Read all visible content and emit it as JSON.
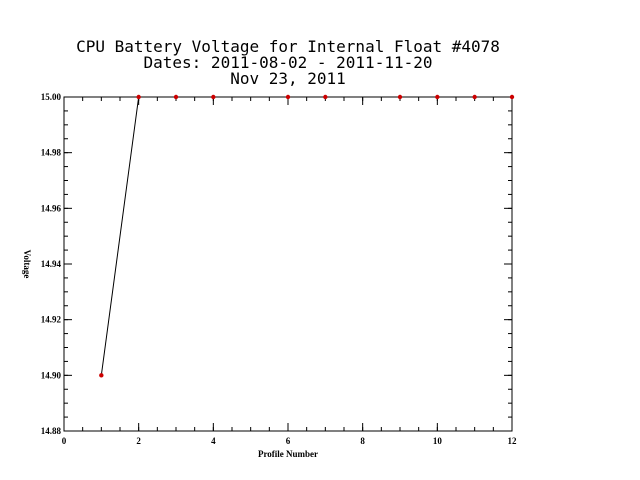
{
  "chart_data": {
    "type": "line",
    "title_lines": [
      "CPU Battery Voltage for Internal Float #4078",
      "Dates:  2011-08-02 -  2011-11-20",
      "Nov 23, 2011"
    ],
    "xlabel": "Profile Number",
    "ylabel": "Voltage",
    "xlim": [
      0,
      12
    ],
    "ylim": [
      14.88,
      15.0
    ],
    "x_ticks": [
      0,
      2,
      4,
      6,
      8,
      10,
      12
    ],
    "x_tick_labels": [
      "0",
      "2",
      "4",
      "6",
      "8",
      "10",
      "12"
    ],
    "x_minor_step": 0.5,
    "y_ticks": [
      14.88,
      14.9,
      14.92,
      14.94,
      14.96,
      14.98,
      15.0
    ],
    "y_tick_labels": [
      "14.88",
      "14.90",
      "14.92",
      "14.94",
      "14.96",
      "14.98",
      "15.00"
    ],
    "y_minor_step": 0.005,
    "grid": false,
    "series": [
      {
        "x": [
          1,
          2,
          3,
          4,
          6,
          7,
          9,
          10,
          11,
          12
        ],
        "y": [
          14.9,
          15.0,
          15.0,
          15.0,
          15.0,
          15.0,
          15.0,
          15.0,
          15.0,
          15.0
        ],
        "line_color": "#000000",
        "marker_color": "#cc0000"
      }
    ]
  }
}
